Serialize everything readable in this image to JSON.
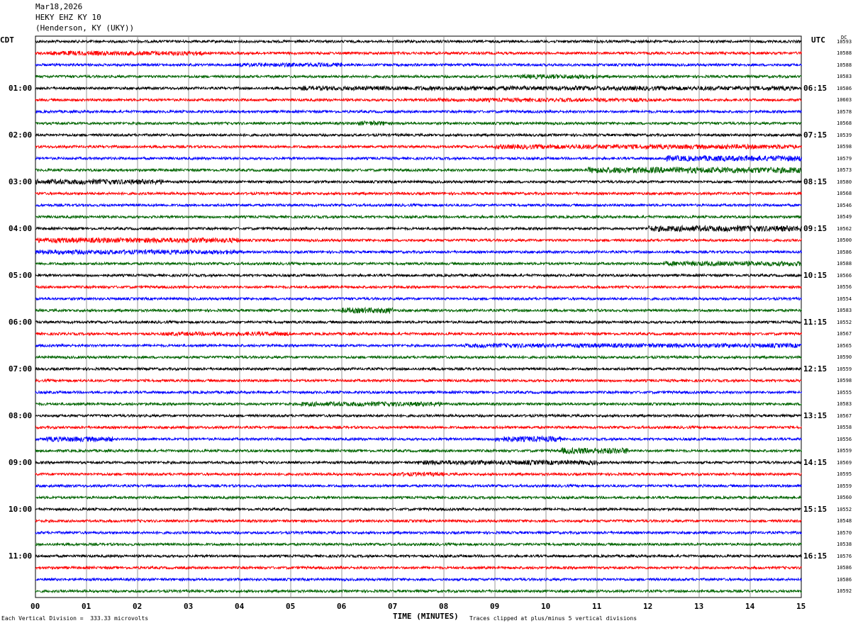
{
  "header": {
    "date": "Mar18,2026",
    "station": "HEKY EHZ KY 10",
    "location": "(Henderson, KY (UKY))"
  },
  "left_tz": "CDT",
  "right_tz": "UTC",
  "dc_label": "DC",
  "footer": {
    "scale": "Each Vertical Division =  333.33 microvolts",
    "clip": "Traces clipped at plus/minus 5 vertical divisions"
  },
  "colors": {
    "trace": [
      "#000000",
      "#ff0000",
      "#0000ff",
      "#006400"
    ],
    "grid": "#808080"
  },
  "chart_data": {
    "type": "line",
    "title": "",
    "xlabel": "TIME (MINUTES)",
    "xlim": [
      0,
      15
    ],
    "x_ticks": [
      "00",
      "01",
      "02",
      "03",
      "04",
      "05",
      "06",
      "07",
      "08",
      "09",
      "10",
      "11",
      "12",
      "13",
      "14",
      "15"
    ],
    "trace_count": 48,
    "minutes_per_trace": 15,
    "left_hour_labels": [
      "01:00",
      "02:00",
      "03:00",
      "04:00",
      "05:00",
      "06:00",
      "07:00",
      "08:00",
      "09:00",
      "10:00",
      "11:00"
    ],
    "right_hour_labels": [
      "06:15",
      "07:15",
      "08:15",
      "09:15",
      "10:15",
      "11:15",
      "12:15",
      "13:15",
      "14:15",
      "15:15",
      "16:15"
    ],
    "dc_offsets": [
      "10593",
      "10588",
      "10588",
      "10583",
      "10586",
      "10603",
      "10578",
      "10568",
      "10539",
      "10598",
      "10579",
      "10573",
      "10580",
      "10568",
      "10546",
      "10549",
      "10562",
      "10500",
      "10586",
      "10588",
      "10566",
      "10556",
      "10554",
      "10583",
      "10552",
      "10567",
      "10565",
      "10590",
      "10559",
      "10598",
      "10555",
      "10583",
      "10567",
      "10558",
      "10556",
      "10559",
      "10569",
      "10595",
      "10559",
      "10560",
      "10552",
      "10548",
      "10570",
      "10538",
      "10576",
      "10586",
      "10586",
      "10592"
    ],
    "bursts": [
      [
        1,
        0.3,
        3.3,
        1.8
      ],
      [
        2,
        4.0,
        6.0,
        1.6
      ],
      [
        3,
        9.5,
        11.0,
        1.8
      ],
      [
        4,
        5.2,
        14.9,
        1.7
      ],
      [
        5,
        7.6,
        12.0,
        1.5
      ],
      [
        9,
        9.0,
        14.9,
        1.8
      ],
      [
        10,
        12.3,
        15.0,
        2.2
      ],
      [
        11,
        10.8,
        15.0,
        2.4
      ],
      [
        12,
        0.0,
        2.5,
        2.0
      ],
      [
        16,
        12.0,
        15.0,
        2.3
      ],
      [
        17,
        0.0,
        4.0,
        2.0
      ],
      [
        18,
        0.0,
        4.0,
        1.8
      ],
      [
        19,
        12.3,
        15.0,
        1.9
      ],
      [
        25,
        2.5,
        5.0,
        1.6
      ],
      [
        26,
        8.4,
        15.0,
        1.7
      ],
      [
        31,
        5.2,
        8.0,
        1.8
      ],
      [
        34,
        0.2,
        1.5,
        2.0
      ],
      [
        34,
        9.0,
        10.3,
        2.2
      ],
      [
        35,
        10.3,
        11.6,
        2.4
      ],
      [
        36,
        7.5,
        11.0,
        1.8
      ],
      [
        37,
        7.0,
        8.0,
        1.6
      ],
      [
        7,
        6.3,
        6.9,
        1.8
      ],
      [
        23,
        6.0,
        7.0,
        2.2
      ]
    ]
  }
}
